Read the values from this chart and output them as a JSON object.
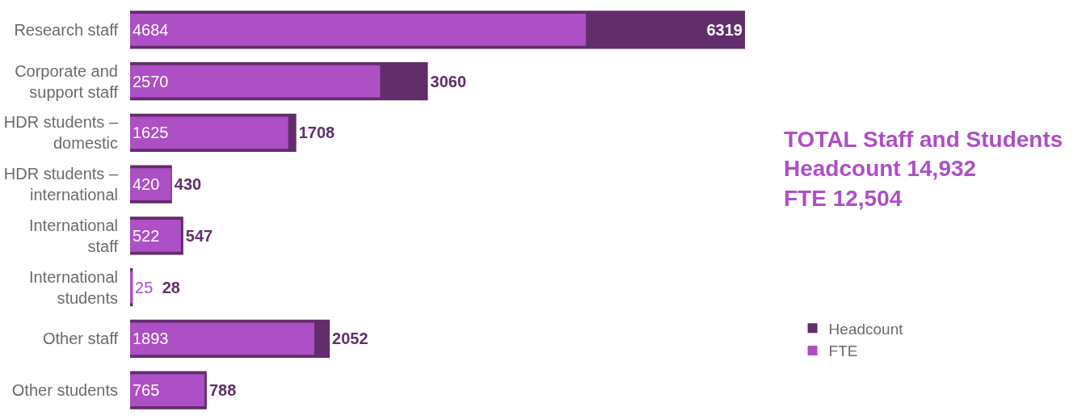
{
  "chart_data": {
    "type": "bar",
    "orientation": "horizontal",
    "data_labels": true,
    "legend": "right",
    "grid": false,
    "tick_labels": "y",
    "categories": [
      "Research staff",
      "Corporate and support staff",
      "HDR students – domestic",
      "HDR students – international",
      "International staff",
      "International students",
      "Other staff",
      "Other students"
    ],
    "series": [
      {
        "name": "Headcount",
        "color": "#622d6b",
        "values": [
          6319,
          3060,
          1708,
          430,
          547,
          28,
          2052,
          788
        ]
      },
      {
        "name": "FTE",
        "color": "#ad4fc5",
        "values": [
          4684,
          2570,
          1625,
          420,
          522,
          25,
          1893,
          765
        ]
      }
    ],
    "annotations": [
      "TOTAL Staff and Students\nHeadcount 14,932\nFTE 12,504"
    ]
  }
}
